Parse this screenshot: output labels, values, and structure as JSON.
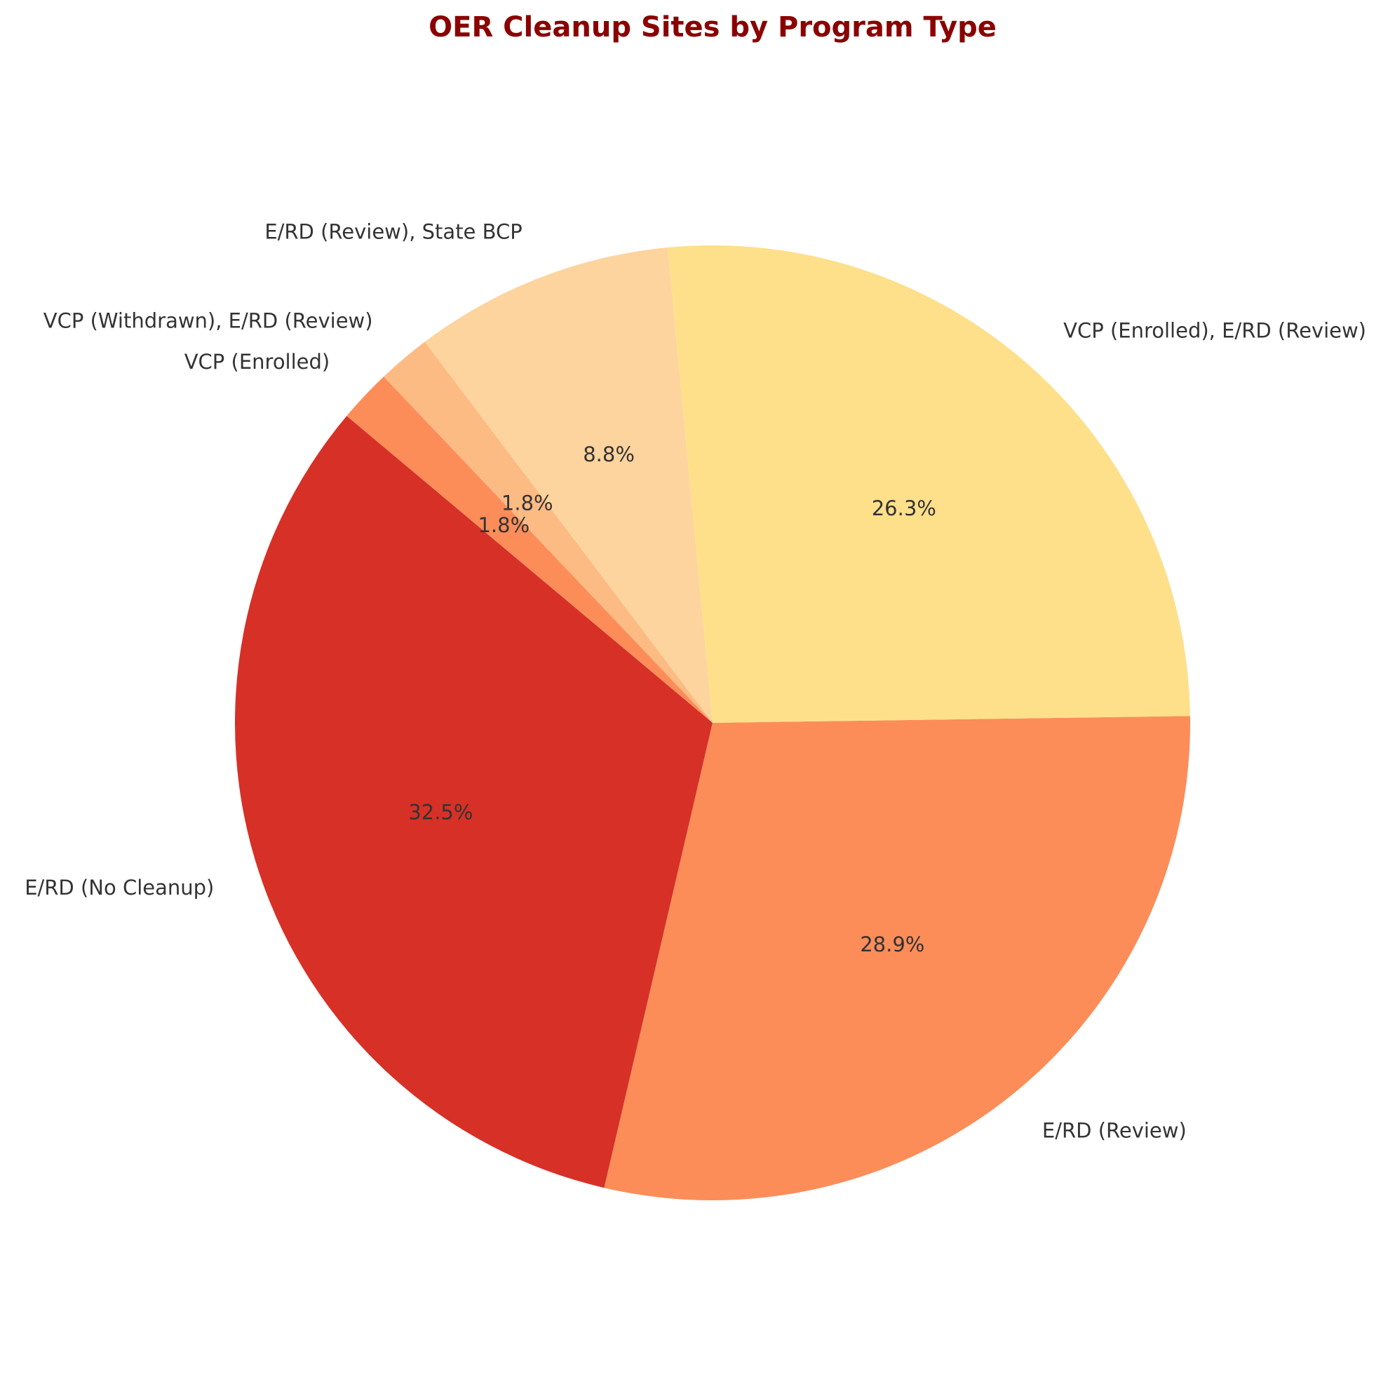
{
  "chart_data": {
    "type": "pie",
    "title": "OER Cleanup Sites by Program Type",
    "title_color": "#8B0000",
    "start_angle_deg": 140,
    "direction": "counterclockwise",
    "slices": [
      {
        "label": "E/RD (No Cleanup)",
        "value": 32.5,
        "pct_label": "32.5%",
        "color": "#D73027"
      },
      {
        "label": "E/RD (Review)",
        "value": 28.9,
        "pct_label": "28.9%",
        "color": "#FC8D59"
      },
      {
        "label": "VCP (Enrolled), E/RD (Review)",
        "value": 26.3,
        "pct_label": "26.3%",
        "color": "#FEE08B"
      },
      {
        "label": "E/RD (Review), State BCP",
        "value": 8.8,
        "pct_label": "8.8%",
        "color": "#FDD49E"
      },
      {
        "label": "VCP (Withdrawn), E/RD (Review)",
        "value": 1.8,
        "pct_label": "1.8%",
        "color": "#FDBB84"
      },
      {
        "label": "VCP (Enrolled)",
        "value": 1.8,
        "pct_label": "1.8%",
        "color": "#FC8D59"
      }
    ]
  }
}
